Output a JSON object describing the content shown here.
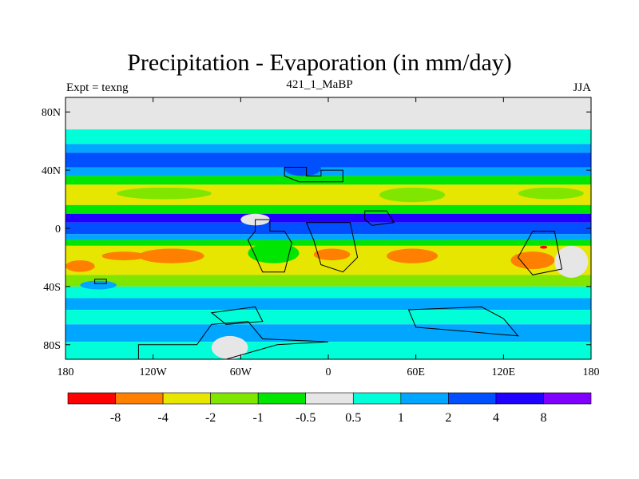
{
  "header": {
    "title": "Precipitation - Evaporation (in mm/day)",
    "subtitle": "421_1_MaBP",
    "left_label": "Expt = texng",
    "right_label": "JJA"
  },
  "chart_data": {
    "type": "heatmap",
    "title": "Precipitation - Evaporation (in mm/day)",
    "subtitle": "421_1_MaBP",
    "experiment": "Expt = texng",
    "season": "JJA",
    "x_ticks": [
      "180",
      "120W",
      "60W",
      "0",
      "60E",
      "120E",
      "180"
    ],
    "x_tick_values": [
      -180,
      -120,
      -60,
      0,
      60,
      120,
      180
    ],
    "y_ticks": [
      "80N",
      "40N",
      "0",
      "40S",
      "80S"
    ],
    "y_tick_values": [
      80,
      40,
      0,
      -40,
      -80
    ],
    "xlim": [
      -180,
      180
    ],
    "ylim": [
      -90,
      90
    ],
    "colorbar": {
      "labels": [
        "-8",
        "-4",
        "-2",
        "-1",
        "-0.5",
        "0.5",
        "1",
        "2",
        "4",
        "8"
      ],
      "colors": [
        "#ff0000",
        "#ff8000",
        "#e6e600",
        "#80e600",
        "#00e600",
        "#e6e6e6",
        "#00ffd9",
        "#00a6ff",
        "#0050ff",
        "#2000ff",
        "#8000ff"
      ]
    },
    "bands": [
      {
        "lat": [
          68,
          90
        ],
        "color": "#e6e6e6"
      },
      {
        "lat": [
          58,
          68
        ],
        "color": "#00ffd9"
      },
      {
        "lat": [
          52,
          58
        ],
        "color": "#00a6ff"
      },
      {
        "lat": [
          42,
          52
        ],
        "color": "#0050ff"
      },
      {
        "lat": [
          36,
          42
        ],
        "color": "#00a6ff"
      },
      {
        "lat": [
          30,
          36
        ],
        "color": "#00e600"
      },
      {
        "lat": [
          16,
          30
        ],
        "color": "#e6e600"
      },
      {
        "lat": [
          10,
          16
        ],
        "color": "#00e600"
      },
      {
        "lat": [
          4,
          10
        ],
        "color": "#2000ff"
      },
      {
        "lat": [
          -4,
          4
        ],
        "color": "#0050ff"
      },
      {
        "lat": [
          -8,
          -4
        ],
        "color": "#00a6ff"
      },
      {
        "lat": [
          -12,
          -8
        ],
        "color": "#00e600"
      },
      {
        "lat": [
          -32,
          -12
        ],
        "color": "#e6e600"
      },
      {
        "lat": [
          -40,
          -32
        ],
        "color": "#80e600"
      },
      {
        "lat": [
          -48,
          -40
        ],
        "color": "#00ffd9"
      },
      {
        "lat": [
          -56,
          -48
        ],
        "color": "#00a6ff"
      },
      {
        "lat": [
          -66,
          -56
        ],
        "color": "#00ffd9"
      },
      {
        "lat": [
          -78,
          -66
        ],
        "color": "#00a6ff"
      },
      {
        "lat": [
          -90,
          -78
        ],
        "color": "#00ffd9"
      }
    ],
    "patches": [
      {
        "lon": [
          -145,
          -80
        ],
        "lat": [
          20,
          28
        ],
        "color": "#80e600"
      },
      {
        "lon": [
          35,
          80
        ],
        "lat": [
          18,
          28
        ],
        "color": "#80e600"
      },
      {
        "lon": [
          130,
          175
        ],
        "lat": [
          20,
          28
        ],
        "color": "#80e600"
      },
      {
        "lon": [
          -130,
          -85
        ],
        "lat": [
          -24,
          -14
        ],
        "color": "#ff8000"
      },
      {
        "lon": [
          -155,
          -125
        ],
        "lat": [
          -22,
          -16
        ],
        "color": "#ff8000"
      },
      {
        "lon": [
          -10,
          15
        ],
        "lat": [
          -22,
          -14
        ],
        "color": "#ff8000"
      },
      {
        "lon": [
          40,
          75
        ],
        "lat": [
          -24,
          -14
        ],
        "color": "#ff8000"
      },
      {
        "lon": [
          125,
          155
        ],
        "lat": [
          -28,
          -16
        ],
        "color": "#ff8000"
      },
      {
        "lon": [
          -180,
          -160
        ],
        "lat": [
          -30,
          -22
        ],
        "color": "#ff8000"
      },
      {
        "lon": [
          -55,
          -20
        ],
        "lat": [
          -24,
          -10
        ],
        "color": "#00e600"
      },
      {
        "lon": [
          155,
          178
        ],
        "lat": [
          -34,
          -12
        ],
        "color": "#e6e6e6"
      },
      {
        "lon": [
          -60,
          -40
        ],
        "lat": [
          2,
          10
        ],
        "color": "#e6e6e6"
      },
      {
        "lon": [
          -30,
          -5
        ],
        "lat": [
          36,
          46
        ],
        "color": "#0050ff"
      },
      {
        "lon": [
          145,
          150
        ],
        "lat": [
          -14,
          -12
        ],
        "color": "#ff0000"
      },
      {
        "lon": [
          -80,
          -55
        ],
        "lat": [
          -90,
          -74
        ],
        "color": "#e6e6e6"
      },
      {
        "lon": [
          -170,
          -145
        ],
        "lat": [
          -42,
          -36
        ],
        "color": "#00a6ff"
      }
    ],
    "outlines": [
      {
        "points": [
          [
            -30,
            42
          ],
          [
            -15,
            42
          ],
          [
            -15,
            36
          ],
          [
            -5,
            36
          ],
          [
            -5,
            40
          ],
          [
            10,
            40
          ],
          [
            10,
            32
          ],
          [
            -20,
            32
          ],
          [
            -30,
            36
          ]
        ]
      },
      {
        "points": [
          [
            -50,
            6
          ],
          [
            -40,
            6
          ],
          [
            -40,
            -2
          ],
          [
            -30,
            -2
          ],
          [
            -25,
            -10
          ],
          [
            -30,
            -30
          ],
          [
            -45,
            -30
          ],
          [
            -55,
            -8
          ],
          [
            -50,
            -2
          ]
        ]
      },
      {
        "points": [
          [
            -15,
            4
          ],
          [
            15,
            4
          ],
          [
            20,
            -20
          ],
          [
            10,
            -30
          ],
          [
            -5,
            -25
          ],
          [
            -10,
            -8
          ]
        ]
      },
      {
        "points": [
          [
            25,
            12
          ],
          [
            40,
            12
          ],
          [
            45,
            4
          ],
          [
            30,
            2
          ],
          [
            25,
            6
          ]
        ]
      },
      {
        "points": [
          [
            140,
            -2
          ],
          [
            155,
            -2
          ],
          [
            160,
            -28
          ],
          [
            140,
            -32
          ],
          [
            130,
            -20
          ]
        ]
      },
      {
        "points": [
          [
            -160,
            -35
          ],
          [
            -152,
            -35
          ],
          [
            -152,
            -38
          ],
          [
            -160,
            -38
          ]
        ]
      },
      {
        "points": [
          [
            -130,
            -80
          ],
          [
            -90,
            -80
          ],
          [
            -80,
            -66
          ],
          [
            -55,
            -64
          ],
          [
            -45,
            -76
          ],
          [
            0,
            -78
          ],
          [
            -35,
            -80
          ],
          [
            -70,
            -90
          ],
          [
            -130,
            -90
          ]
        ]
      },
      {
        "points": [
          [
            -80,
            -58
          ],
          [
            -50,
            -54
          ],
          [
            -45,
            -64
          ],
          [
            -70,
            -66
          ]
        ]
      },
      {
        "points": [
          [
            55,
            -56
          ],
          [
            105,
            -54
          ],
          [
            120,
            -62
          ],
          [
            130,
            -74
          ],
          [
            85,
            -70
          ],
          [
            60,
            -68
          ]
        ]
      }
    ]
  }
}
